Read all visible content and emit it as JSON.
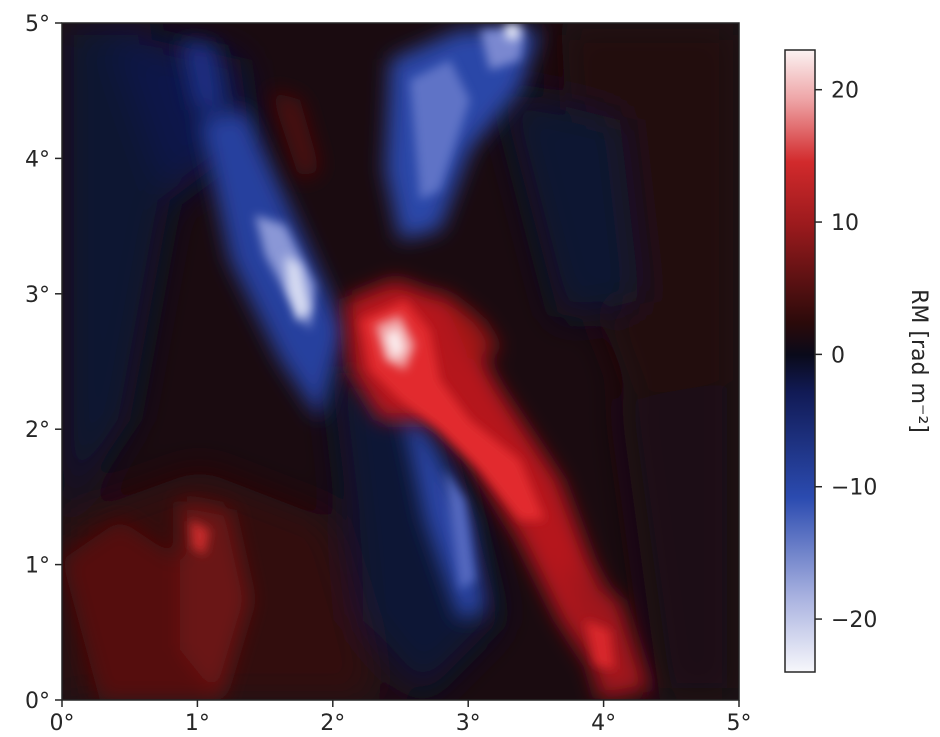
{
  "chart_data": {
    "type": "heatmap",
    "xlabel": "",
    "ylabel": "",
    "xlim": [
      0,
      5
    ],
    "ylim": [
      0,
      5
    ],
    "x_ticks": [
      "0°",
      "1°",
      "2°",
      "3°",
      "4°",
      "5°"
    ],
    "y_ticks": [
      "0°",
      "1°",
      "2°",
      "3°",
      "4°",
      "5°"
    ],
    "colorbar": {
      "label": "RM [rad m⁻²]",
      "range": [
        -24,
        23
      ],
      "ticks": [
        {
          "value": 20,
          "label": "20"
        },
        {
          "value": 10,
          "label": "10"
        },
        {
          "value": 0,
          "label": "0"
        },
        {
          "value": -10,
          "label": "−10"
        },
        {
          "value": -20,
          "label": "−20"
        }
      ],
      "colormap": [
        "#f7f7fb",
        "#2b4bb0",
        "#0c1030",
        "#2a0a0a",
        "#c8262a",
        "#fbf2f2"
      ]
    },
    "features": [
      {
        "kind": "positive",
        "peak_rm": 22,
        "x": 2.45,
        "y": 2.6
      },
      {
        "kind": "positive",
        "peak_rm": 13,
        "x": 3.1,
        "y": 1.8
      },
      {
        "kind": "positive",
        "peak_rm": 12,
        "x": 4.0,
        "y": 0.3
      },
      {
        "kind": "negative",
        "peak_rm": -22,
        "x": 1.75,
        "y": 3.0
      },
      {
        "kind": "negative",
        "peak_rm": -18,
        "x": 2.8,
        "y": 4.3
      },
      {
        "kind": "negative",
        "peak_rm": -15,
        "x": 3.0,
        "y": 1.2
      }
    ]
  }
}
